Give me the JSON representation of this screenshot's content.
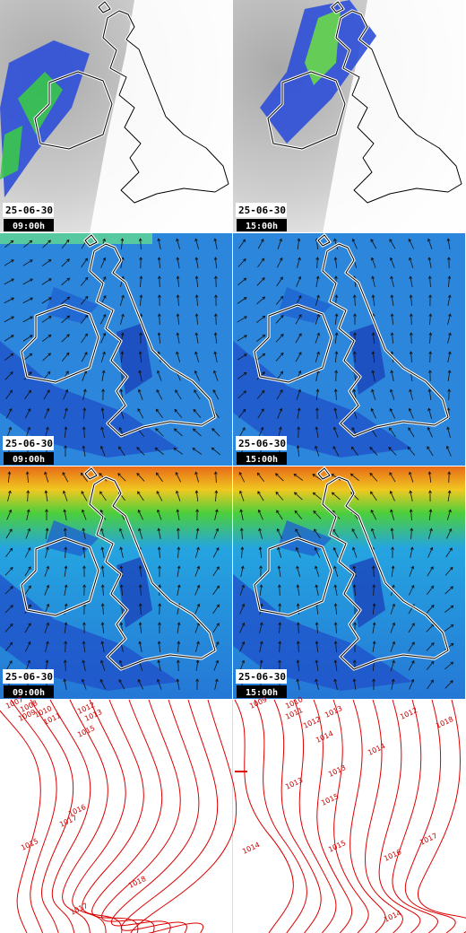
{
  "panels": [
    {
      "date": "25-06-30",
      "time": "09:00h"
    },
    {
      "date": "25-06-30",
      "time": "15:00h"
    },
    {
      "date": "25-06-30",
      "time": "09:00h"
    },
    {
      "date": "25-06-30",
      "time": "15:00h"
    },
    {
      "date": "25-06-30",
      "time": "09:00h"
    },
    {
      "date": "25-06-30",
      "time": "15:00h"
    }
  ],
  "isobars": {
    "left": [
      1007,
      1008,
      1009,
      1010,
      1011,
      1012,
      1013,
      1015,
      1016,
      1017,
      1015,
      1018,
      1017
    ],
    "right": [
      1009,
      1010,
      1011,
      1012,
      1013,
      1012,
      1014,
      1014,
      1013,
      1013,
      1015,
      1018,
      1014,
      1017,
      1015,
      1014,
      1016
    ]
  }
}
